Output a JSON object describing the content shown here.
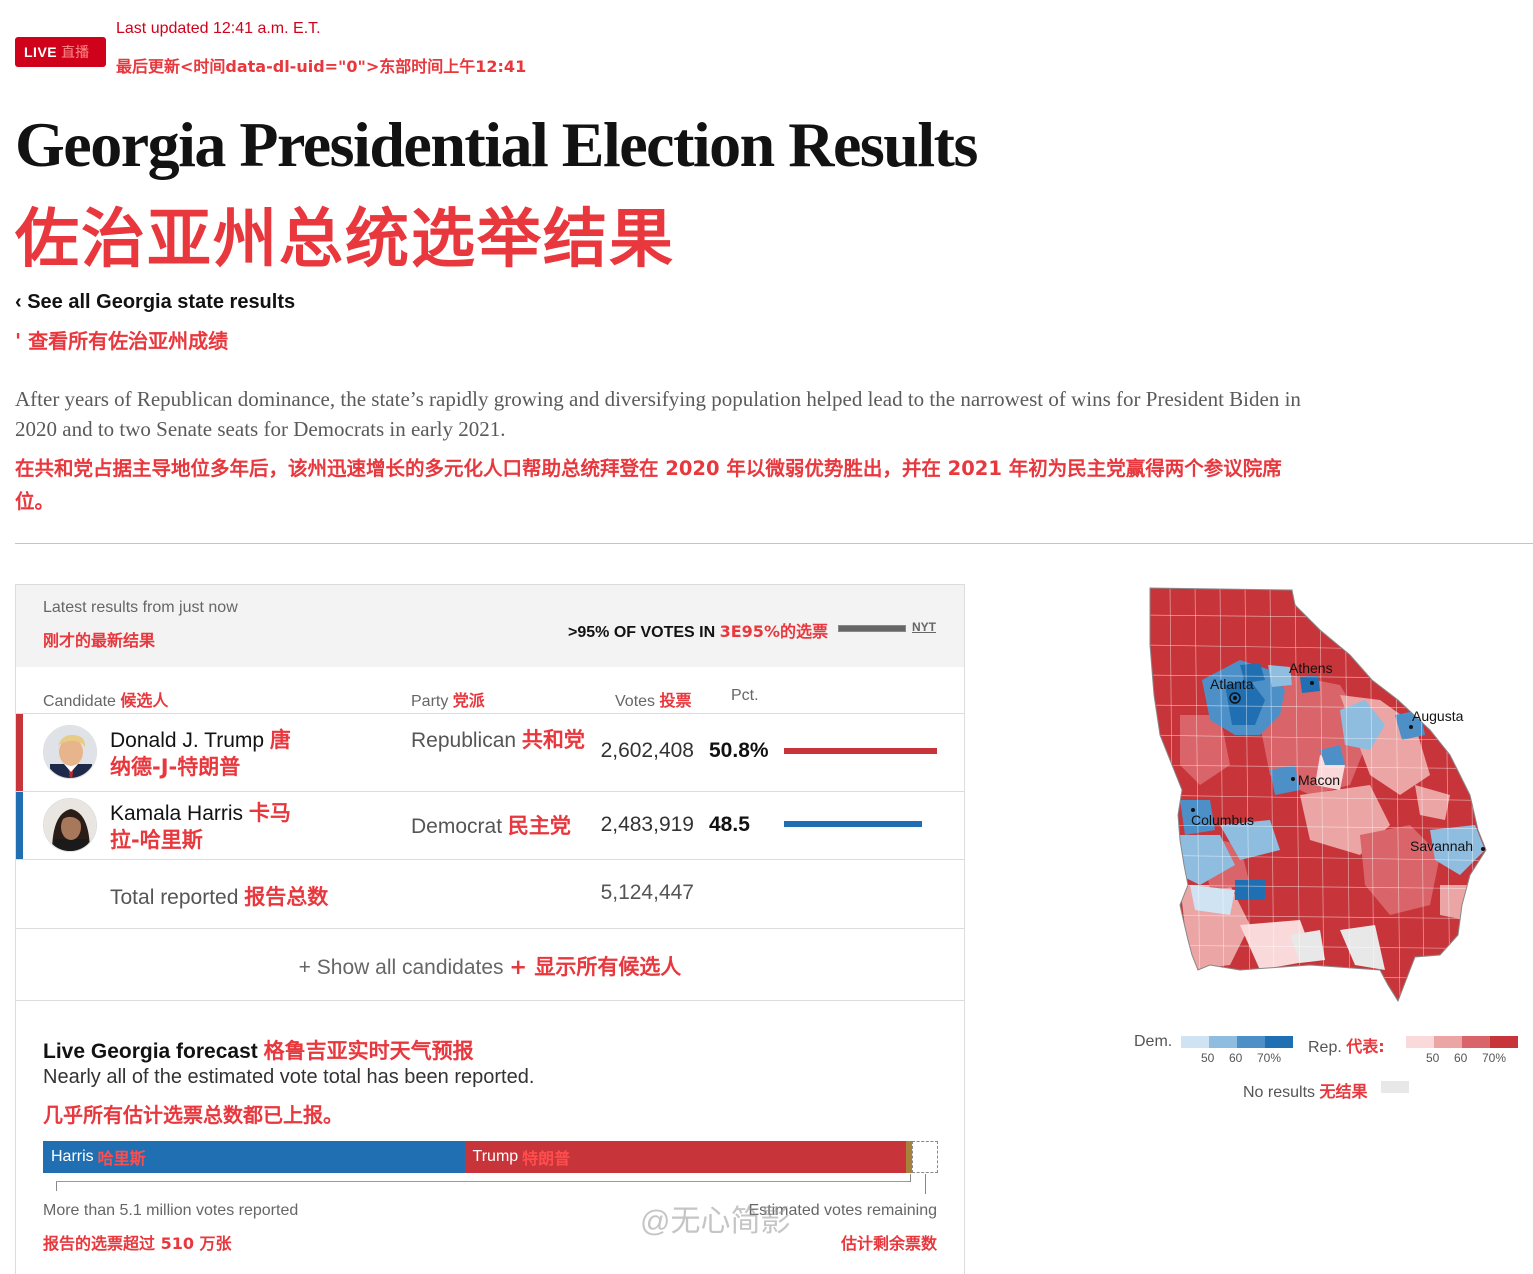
{
  "header": {
    "live_label": "LIVE",
    "live_label_cn": "直播",
    "updated": "Last updated 12:41 a.m. E.T.",
    "updated_cn": "最后更新<时间data-dl-uid=\"0\">东部时间上午12:41",
    "title": "Georgia Presidential Election Results",
    "title_cn": "佐治亚州总统选举结果",
    "back_link": "‹ See all Georgia state results",
    "back_link_cn": "' 查看所有佐治亚州成绩",
    "intro": "After years of Republican dominance, the state’s rapidly growing and diversifying population helped lead to the narrowest of wins for President Biden in 2020 and to two Senate seats for Democrats in early 2021.",
    "intro_cn": "在共和党占据主导地位多年后，该州迅速增长的多元化人口帮助总统拜登在 2020 年以微弱优势胜出，并在 2021 年初为民主党赢得两个参议院席位。"
  },
  "results": {
    "latest": "Latest results from just now",
    "latest_cn": "刚才的最新结果",
    "votes_in": ">95% OF VOTES IN",
    "votes_in_cn": "3E95%的选票",
    "votes_in_fraction": 0.95,
    "source": "NYT",
    "columns": {
      "candidate": "Candidate",
      "candidate_cn": "候选人",
      "party": "Party",
      "party_cn": "党派",
      "votes": "Votes",
      "votes_cn": "投票",
      "pct": "Pct."
    },
    "candidates": [
      {
        "name": "Donald J. Trump",
        "name_cn": "唐纳德-J-特朗普",
        "party": "Republican",
        "party_cn": "共和党",
        "votes": "2,602,408",
        "pct": "50.8%",
        "share": 50.8,
        "color": "#c7353a"
      },
      {
        "name": "Kamala Harris",
        "name_cn": "卡马拉-哈里斯",
        "party": "Democrat",
        "party_cn": "民主党",
        "votes": "2,483,919",
        "pct": "48.5",
        "share": 48.5,
        "color": "#1f6fb2"
      }
    ],
    "total_label": "Total reported",
    "total_label_cn": "报告总数",
    "total_votes": "5,124,447",
    "show_all": "+ Show all candidates",
    "show_all_cn": "+ 显示所有候选人"
  },
  "forecast": {
    "title": "Live Georgia forecast",
    "title_cn": "格鲁吉亚实时天气预报",
    "subtitle": "Nearly all of the estimated vote total has been reported.",
    "subtitle_cn": "几乎所有估计选票总数都已上报。",
    "harris_label": "Harris",
    "harris_label_cn": "哈里斯",
    "trump_label": "Trump",
    "trump_label_cn": "特朗普",
    "harris_share": 47.1,
    "trump_share": 49.3,
    "other_share": 0.7,
    "remaining_share": 2.9,
    "reported_text": "More than 5.1 million votes reported",
    "reported_text_cn": "报告的选票超过 510 万张",
    "remaining_text": "Estimated votes remaining",
    "remaining_text_cn": "估计剩余票数"
  },
  "map": {
    "cities": [
      "Atlanta",
      "Athens",
      "Augusta",
      "Macon",
      "Columbus",
      "Savannah"
    ],
    "legend": {
      "dem": "Dem.",
      "rep": "Rep.",
      "rep_cn": "代表:",
      "thresholds": [
        "50",
        "60",
        "70%"
      ],
      "no_results": "No results",
      "no_results_cn": "无结果",
      "dem_colors": [
        "#cfe3f3",
        "#8fbde0",
        "#4d90c8",
        "#1f6fb2"
      ],
      "rep_colors": [
        "#f9d9d9",
        "#eba5a5",
        "#d9656a",
        "#c7353a"
      ],
      "none_color": "#e8e8e8"
    }
  },
  "watermark": "@无心简影"
}
